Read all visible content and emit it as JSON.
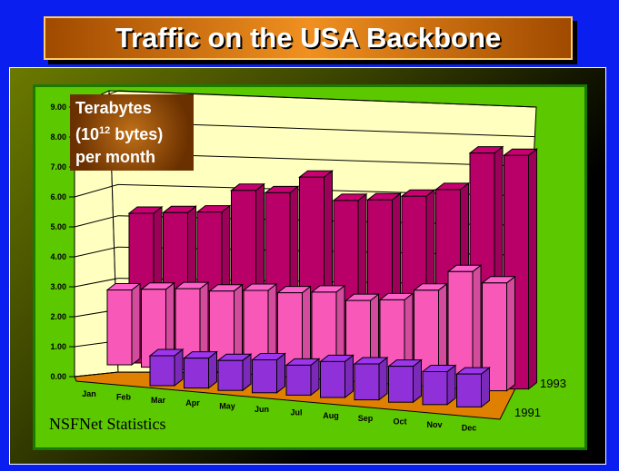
{
  "title": "Traffic on the USA Backbone",
  "units": {
    "line1": "Terabytes",
    "line2_pre": "(10",
    "line2_sup": "12",
    "line2_post": " bytes)",
    "line3": "per month"
  },
  "source": "NSFNet  Statistics",
  "chart_data": {
    "type": "bar",
    "style": "3d-column",
    "categories": [
      "Jan",
      "Feb",
      "Mar",
      "Apr",
      "May",
      "Jun",
      "Jul",
      "Aug",
      "Sep",
      "Oct",
      "Nov",
      "Dec"
    ],
    "yticks": [
      "0.00",
      "1.00",
      "2.00",
      "3.00",
      "4.00",
      "5.00",
      "6.00",
      "7.00",
      "8.00",
      "9.00"
    ],
    "ylim": [
      0,
      9
    ],
    "grid": true,
    "series": [
      {
        "name": "1991",
        "color": "#9030d8",
        "values": [
          0.9,
          1.0,
          1.0,
          1.0,
          1.0,
          1.1,
          1.0,
          1.2,
          1.2,
          1.2,
          1.1,
          1.1
        ]
      },
      {
        "color": "#f858b8",
        "values": [
          2.5,
          2.6,
          2.7,
          2.7,
          2.8,
          2.8,
          2.9,
          2.7,
          2.8,
          3.2,
          3.9,
          3.6
        ]
      },
      {
        "name": "1993",
        "color": "#b80068",
        "values": [
          5.0,
          5.1,
          5.2,
          6.0,
          6.0,
          6.6,
          5.9,
          6.0,
          6.2,
          6.5,
          7.8,
          7.8
        ]
      }
    ],
    "wall_color": "#ffffc0",
    "floor_color": "#e08000"
  }
}
